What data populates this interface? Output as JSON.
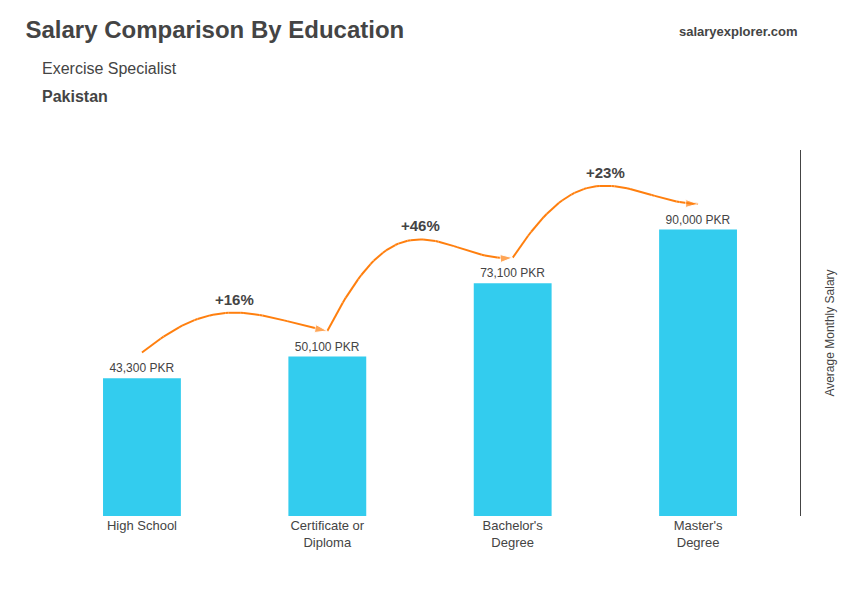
{
  "chart_data": {
    "type": "bar",
    "title": "Salary Comparison By Education",
    "subtitle": [
      "Exercise Specialist",
      "Pakistan"
    ],
    "ylabel": "Average Monthly Salary",
    "categories": [
      "High School",
      "Certificate or\nDiploma",
      "Bachelor's\nDegree",
      "Master's\nDegree"
    ],
    "values": [
      43300,
      50100,
      73100,
      90000
    ],
    "value_labels": [
      "43,300 PKR",
      "50,100 PKR",
      "73,100 PKR",
      "90,000 PKR"
    ],
    "data_labels": true,
    "color": "#33ccee",
    "ylim": [
      0,
      115000
    ],
    "grid": false,
    "tick_labels": "x",
    "annotations": [
      {
        "text": "+16%",
        "from": "High School",
        "to": "Certificate or\nDiploma"
      },
      {
        "text": "+46%",
        "from": "Certificate or\nDiploma",
        "to": "Bachelor's\nDegree"
      },
      {
        "text": "+23%",
        "from": "Bachelor's\nDegree",
        "to": "Master's\nDegree"
      },
      {
        "text": "salaryexplorer.com"
      }
    ]
  }
}
